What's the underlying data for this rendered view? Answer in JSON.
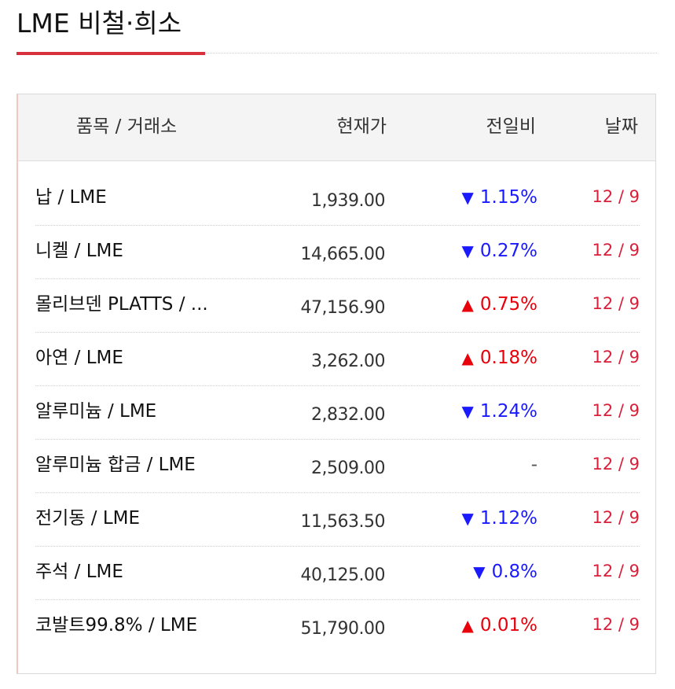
{
  "title": "LME 비철·희소",
  "table": {
    "headers": {
      "item": "품목 / 거래소",
      "price": "현재가",
      "change": "전일비",
      "date": "날짜"
    },
    "rows": [
      {
        "item": "납 / LME",
        "price": "1,939.00",
        "direction": "down",
        "arrow": "▼",
        "change": "1.15%",
        "date": "12 / 9"
      },
      {
        "item": "니켈 / LME",
        "price": "14,665.00",
        "direction": "down",
        "arrow": "▼",
        "change": "0.27%",
        "date": "12 / 9"
      },
      {
        "item": "몰리브덴 PLATTS / ...",
        "price": "47,156.90",
        "direction": "up",
        "arrow": "▲",
        "change": "0.75%",
        "date": "12 / 9"
      },
      {
        "item": "아연 / LME",
        "price": "3,262.00",
        "direction": "up",
        "arrow": "▲",
        "change": "0.18%",
        "date": "12 / 9"
      },
      {
        "item": "알루미늄 / LME",
        "price": "2,832.00",
        "direction": "down",
        "arrow": "▼",
        "change": "1.24%",
        "date": "12 / 9"
      },
      {
        "item": "알루미늄 합금 / LME",
        "price": "2,509.00",
        "direction": "flat",
        "arrow": "",
        "change": "-",
        "date": "12 / 9"
      },
      {
        "item": "전기동 / LME",
        "price": "11,563.50",
        "direction": "down",
        "arrow": "▼",
        "change": "1.12%",
        "date": "12 / 9"
      },
      {
        "item": "주석 / LME",
        "price": "40,125.00",
        "direction": "down",
        "arrow": "▼",
        "change": "0.8%",
        "date": "12 / 9"
      },
      {
        "item": "코발트99.8% / LME",
        "price": "51,790.00",
        "direction": "up",
        "arrow": "▲",
        "change": "0.01%",
        "date": "12 / 9"
      }
    ]
  },
  "colors": {
    "accent": "#d8303c",
    "down": "#1a1aff",
    "up": "#e8000b",
    "date": "#d8203a"
  }
}
